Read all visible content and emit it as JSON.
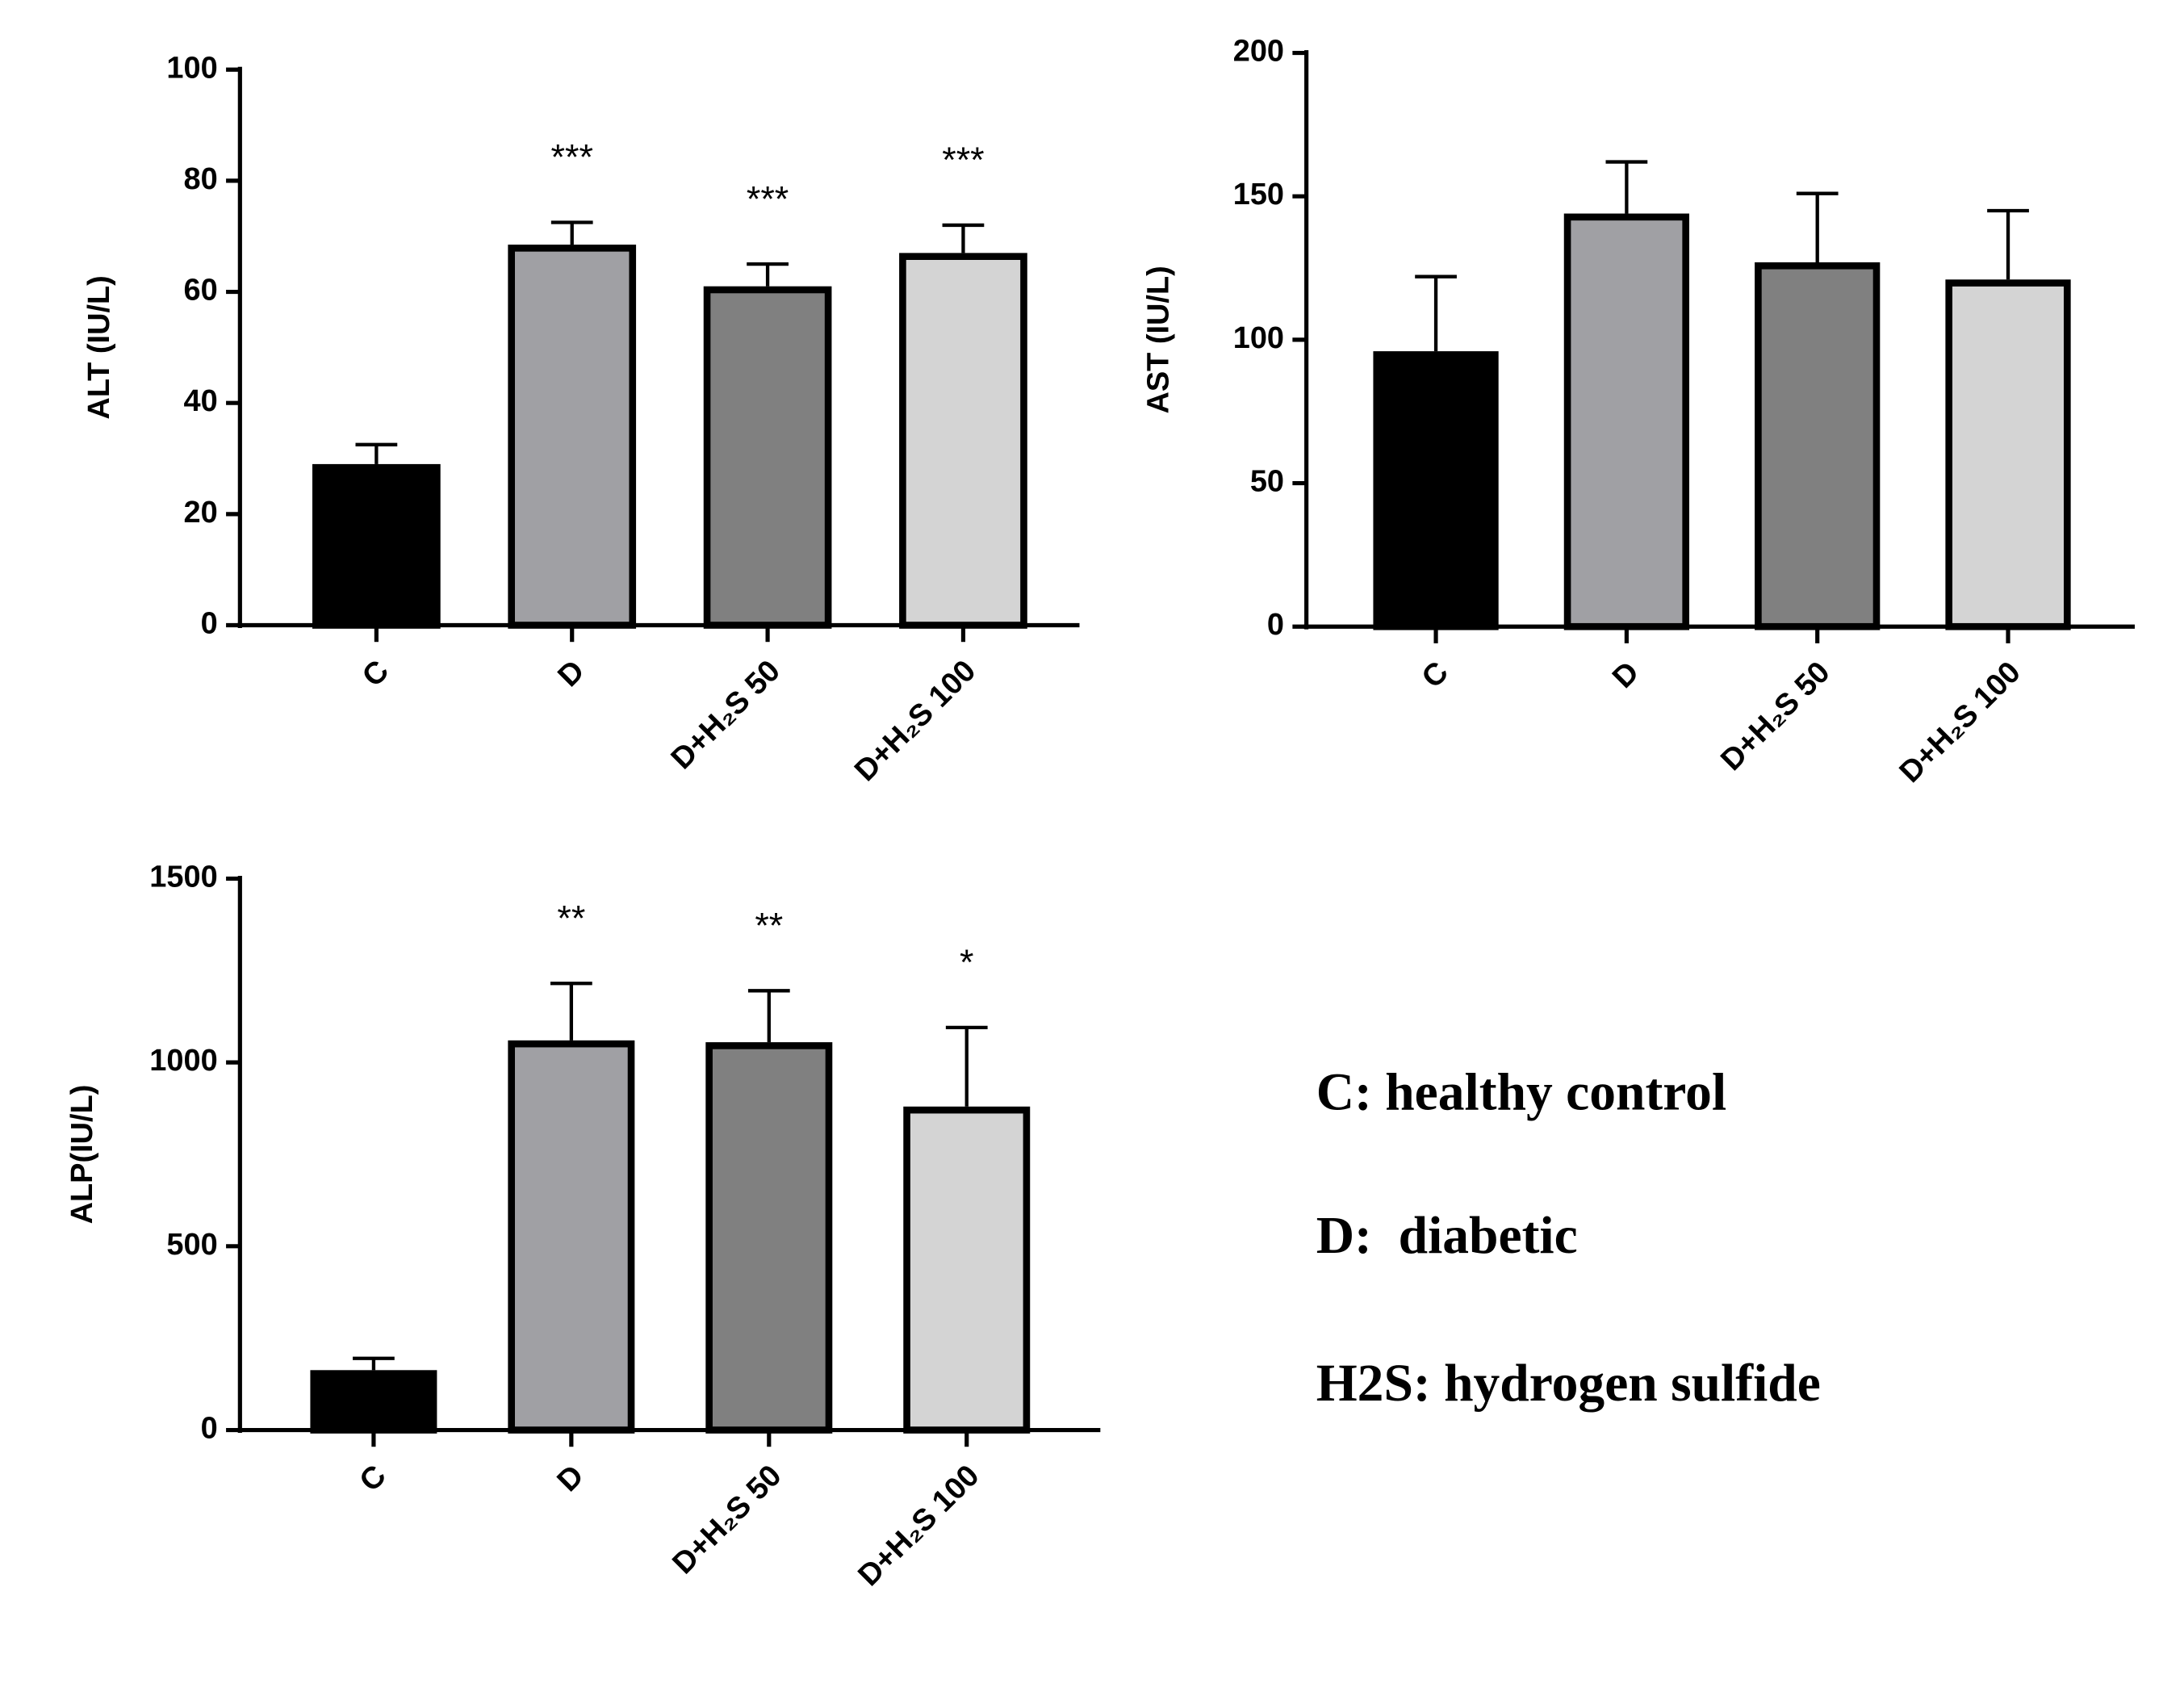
{
  "chart_data": [
    {
      "type": "bar",
      "y_label": "ALT (IU/L)",
      "categories": [
        "C",
        "D",
        "D+H₂S 50",
        "D+H₂S 100"
      ],
      "values": [
        29,
        68.5,
        61,
        67
      ],
      "errors": [
        3.5,
        4,
        4,
        5
      ],
      "annotations": [
        null,
        "***",
        "***",
        "***"
      ],
      "colors": [
        "#000000",
        "#a0a0a4",
        "#808080",
        "#d4d4d4"
      ],
      "ylim": [
        0,
        100
      ],
      "yticks": [
        0,
        20,
        40,
        60,
        80,
        100
      ]
    },
    {
      "type": "bar",
      "y_label": "AST (IU/L)",
      "categories": [
        "C",
        "D",
        "D+H₂S 50",
        "D+H₂S 100"
      ],
      "values": [
        96,
        144,
        127,
        121
      ],
      "errors": [
        26,
        18,
        24,
        24
      ],
      "annotations": [
        null,
        null,
        null,
        null
      ],
      "colors": [
        "#000000",
        "#a0a0a4",
        "#808080",
        "#d4d4d4"
      ],
      "ylim": [
        0,
        200
      ],
      "yticks": [
        0,
        50,
        100,
        150,
        200
      ]
    },
    {
      "type": "bar",
      "y_label": "ALP(IU/L)",
      "categories": [
        "C",
        "D",
        "D+H₂S 50",
        "D+H₂S 100"
      ],
      "values": [
        163,
        1060,
        1055,
        880
      ],
      "errors": [
        32,
        155,
        140,
        215
      ],
      "annotations": [
        null,
        "**",
        "**",
        "*"
      ],
      "colors": [
        "#000000",
        "#a0a0a4",
        "#808080",
        "#d4d4d4"
      ],
      "ylim": [
        0,
        1500
      ],
      "yticks": [
        0,
        500,
        1000,
        1500
      ]
    }
  ],
  "key": [
    "C: healthy control",
    "D:  diabetic",
    "H2S: hydrogen sulfide"
  ]
}
